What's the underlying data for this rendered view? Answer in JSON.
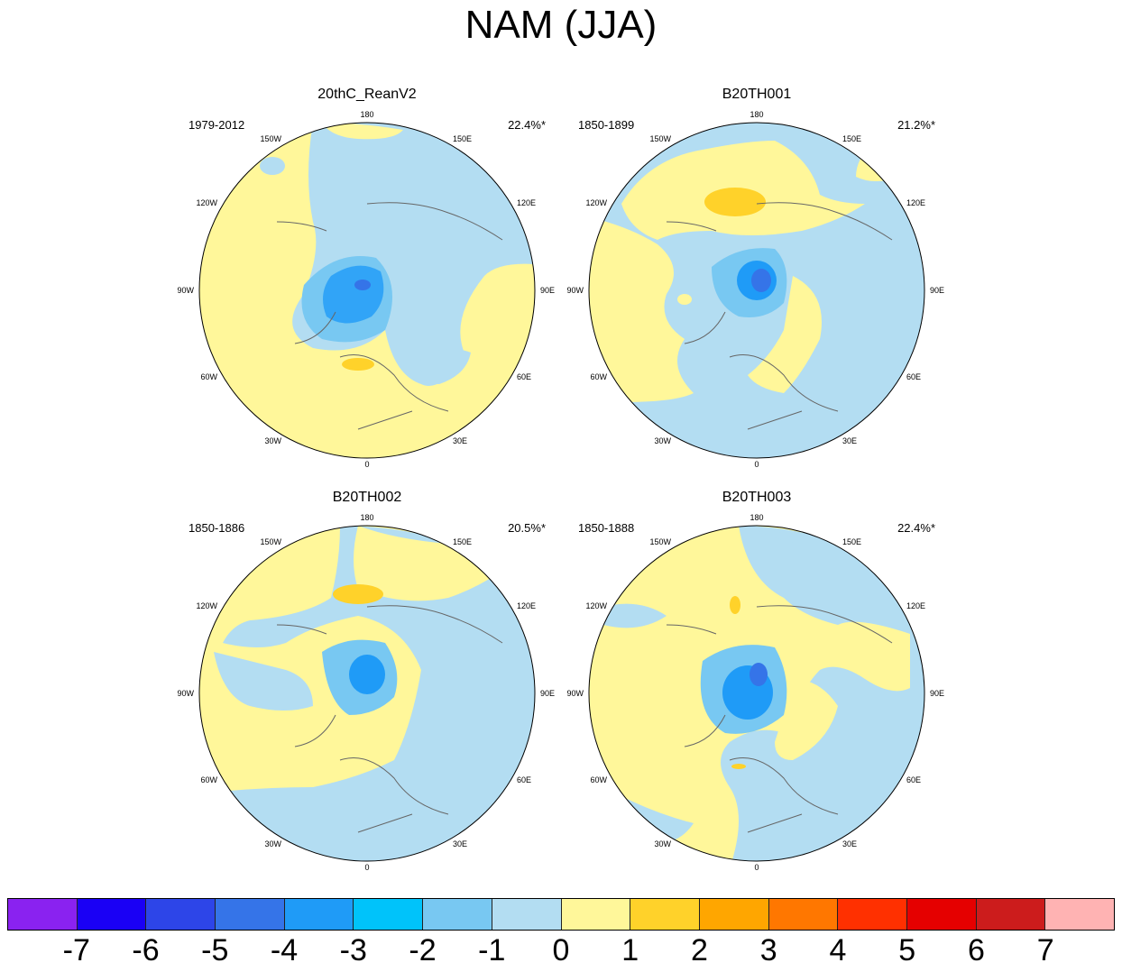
{
  "title": "NAM (JJA)",
  "panels": [
    {
      "name": "20thC_ReanV2",
      "period": "1979-2012",
      "percent": "22.4%*"
    },
    {
      "name": "B20TH001",
      "period": "1850-1899",
      "percent": "21.2%*"
    },
    {
      "name": "B20TH002",
      "period": "1850-1886",
      "percent": "20.5%*"
    },
    {
      "name": "B20TH003",
      "period": "1850-1888",
      "percent": "22.4%*"
    }
  ],
  "longitude_labels": [
    "180",
    "150E",
    "120E",
    "90E",
    "60E",
    "30E",
    "0",
    "30W",
    "60W",
    "90W",
    "120W",
    "150W"
  ],
  "colorbar": {
    "labels": [
      "-7",
      "-6",
      "-5",
      "-4",
      "-3",
      "-2",
      "-1",
      "0",
      "1",
      "2",
      "3",
      "4",
      "5",
      "6",
      "7"
    ],
    "colors": [
      "#8a22f0",
      "#1a00f5",
      "#2d45e8",
      "#3574e8",
      "#1f9bf7",
      "#00c3fa",
      "#78c8f2",
      "#b3ddf2",
      "#fff79a",
      "#ffd22a",
      "#ffa600",
      "#ff7700",
      "#ff3000",
      "#e50000",
      "#cc1c1c",
      "#ffb3b3"
    ]
  },
  "colors": {
    "ocean_neg1": "#b3ddf2",
    "pos1": "#fff79a",
    "pos2": "#ffd22a",
    "neg2": "#78c8f2",
    "neg3": "#1f9bf7",
    "neg4": "#3574e8",
    "coast": "#666666"
  }
}
